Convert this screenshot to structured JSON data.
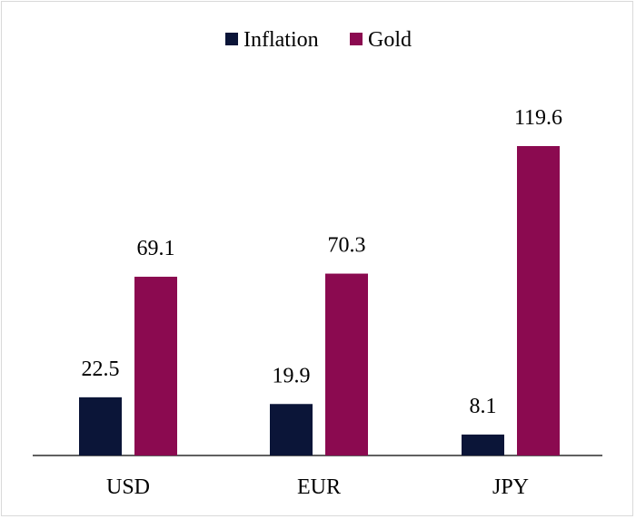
{
  "chart_data": {
    "type": "bar",
    "title": "",
    "xlabel": "",
    "ylabel": "",
    "categories": [
      "USD",
      "EUR",
      "JPY"
    ],
    "series": [
      {
        "name": "Inflation",
        "color": "#0b1538",
        "values": [
          22.5,
          19.9,
          8.1
        ]
      },
      {
        "name": "Gold",
        "color": "#8b0a50",
        "values": [
          69.1,
          70.3,
          119.6
        ]
      }
    ],
    "value_labels": {
      "Inflation": [
        "22.5",
        "19.9",
        "8.1"
      ],
      "Gold": [
        "69.1",
        "70.3",
        "119.6"
      ]
    },
    "ylim": [
      0,
      119.6
    ],
    "grid": false,
    "y_axis_visible": false,
    "legend": "top-center"
  }
}
